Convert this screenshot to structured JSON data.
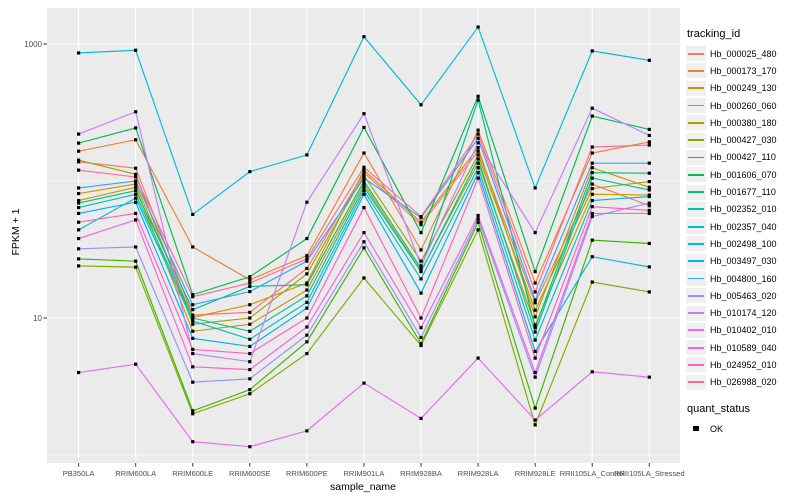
{
  "figure": {
    "y_axis": {
      "title": "FPKM + 1",
      "scale": "log10",
      "tick_labels": [
        "1000",
        "10"
      ],
      "tick_values": [
        1000,
        10
      ],
      "minor_gridline_values": [
        100,
        1
      ]
    },
    "x_axis": {
      "title": "sample_name",
      "categories": [
        "PB350LA",
        "RRIM600LA",
        "RRIM600LE",
        "RRIM600SE",
        "RRIM600PE",
        "RRIM901LA",
        "RRIM928BA",
        "RRIM928LA",
        "RRIM928LE",
        "RRII105LA_Control",
        "RRII105LA_Stressed"
      ]
    }
  },
  "colors": {
    "panel_bg": "#EBEBEB",
    "gridline": "#FFFFFF",
    "tick_mark": "#333333",
    "axis_text": "#4D4D4D",
    "axis_title": "#000000",
    "point": "#000000",
    "legend_key_bg": "#F0F0F0"
  },
  "legend": {
    "tracking_title": "tracking_id",
    "quant_title": "quant_status",
    "quant_items": [
      {
        "label": "OK"
      }
    ]
  },
  "chart_data": {
    "type": "line",
    "title": "",
    "xlabel": "sample_name",
    "ylabel": "FPKM + 1",
    "y_scale": "log10",
    "ylim": [
      1,
      1500
    ],
    "grid": true,
    "legend_position": "right",
    "marker": "small black square (quant_status OK)",
    "x": [
      "PB350LA",
      "RRIM600LA",
      "RRIM600LE",
      "RRIM600SE",
      "RRIM600PE",
      "RRIM901LA",
      "RRIM928BA",
      "RRIM928LA",
      "RRIM928LE",
      "RRII105LA_Control",
      "RRII105LA_Stressed"
    ],
    "series": [
      {
        "name": "Hb_000025_480",
        "color": "#F8766D",
        "values": [
          138,
          124,
          10.5,
          11,
          23,
          115,
          48,
          165,
          12.9,
          95,
          66
        ]
      },
      {
        "name": "Hb_000173_170",
        "color": "#EA8331",
        "values": [
          165,
          200,
          33,
          19,
          28.5,
          160,
          31.4,
          235,
          18,
          160,
          193
        ]
      },
      {
        "name": "Hb_000249_130",
        "color": "#D89000",
        "values": [
          81,
          95,
          10.1,
          12.5,
          18,
          120,
          50,
          175,
          10.2,
          125,
          90
        ]
      },
      {
        "name": "Hb_000260_060",
        "color": "#C09B00",
        "values": [
          72,
          90,
          8.0,
          9.0,
          16,
          95,
          22,
          135,
          8.9,
          80,
          79
        ]
      },
      {
        "name": "Hb_000380_180",
        "color": "#A3A500",
        "values": [
          142,
          112,
          9.0,
          10,
          21,
          110,
          26,
          155,
          11.4,
          88,
          99
        ]
      },
      {
        "name": "Hb_000427_030",
        "color": "#7CAE00",
        "values": [
          24,
          23.5,
          2.0,
          2.8,
          5.5,
          19.6,
          6.3,
          44,
          1.66,
          18.3,
          15.5
        ]
      },
      {
        "name": "Hb_000427_110",
        "color": "#39B600",
        "values": [
          27,
          26,
          2.1,
          3.0,
          6.7,
          32.5,
          6.5,
          50,
          2.2,
          37,
          35
        ]
      },
      {
        "name": "Hb_001606_070",
        "color": "#00BB4E",
        "values": [
          189,
          244,
          14.8,
          20,
          38,
          246,
          42,
          415,
          21.8,
          298,
          238
        ]
      },
      {
        "name": "Hb_001677_110",
        "color": "#00BF7D",
        "values": [
          69,
          85,
          11.5,
          17,
          17.5,
          100,
          23,
          390,
          8.5,
          115,
          114
        ]
      },
      {
        "name": "Hb_002352_010",
        "color": "#00C1A3",
        "values": [
          64,
          80,
          10.0,
          8.0,
          14.5,
          90,
          21.8,
          145,
          7.9,
          105,
          86
        ]
      },
      {
        "name": "Hb_002357_040",
        "color": "#00BFC4",
        "values": [
          44,
          75,
          9.5,
          7.0,
          13,
          85,
          19.3,
          125,
          6.9,
          72,
          77
        ]
      },
      {
        "name": "Hb_002498_100",
        "color": "#00BADE",
        "values": [
          860,
          900,
          57,
          117,
          155,
          1130,
          360,
          1330,
          89,
          890,
          760
        ]
      },
      {
        "name": "Hb_003497_030",
        "color": "#00B0F6",
        "values": [
          58,
          70,
          7.1,
          6.2,
          11.8,
          80,
          15.2,
          115,
          5.7,
          28,
          23.6
        ]
      },
      {
        "name": "Hb_004800_160",
        "color": "#35A2FF",
        "values": [
          89,
          100,
          12.5,
          15.6,
          26,
          105,
          54,
          205,
          13.5,
          135,
          135
        ]
      },
      {
        "name": "Hb_005463_020",
        "color": "#9590FF",
        "values": [
          32,
          33,
          3.4,
          3.6,
          7.5,
          36,
          7.2,
          53,
          3.7,
          55,
          69
        ]
      },
      {
        "name": "Hb_010174_120",
        "color": "#C77CFF",
        "values": [
          220,
          320,
          5.5,
          4.8,
          70,
          310,
          24,
          190,
          42,
          340,
          215
        ]
      },
      {
        "name": "Hb_010402_010",
        "color": "#E76BF3",
        "values": [
          4.0,
          4.6,
          1.25,
          1.15,
          1.5,
          3.35,
          1.85,
          5.1,
          1.8,
          4.05,
          3.7
        ]
      },
      {
        "name": "Hb_010589_040",
        "color": "#FA62DB",
        "values": [
          38,
          52,
          4.4,
          4.2,
          8.6,
          42,
          8.5,
          56,
          4.0,
          58,
          58
        ]
      },
      {
        "name": "Hb_024952_010",
        "color": "#FF62BC",
        "values": [
          50,
          58,
          5.9,
          5.5,
          10,
          64,
          10,
          105,
          5.1,
          65,
          61
        ]
      },
      {
        "name": "Hb_026988_020",
        "color": "#FF6A98",
        "values": [
          120,
          107,
          14.3,
          18,
          27,
          126,
          55,
          220,
          15.5,
          177,
          183
        ]
      }
    ]
  }
}
